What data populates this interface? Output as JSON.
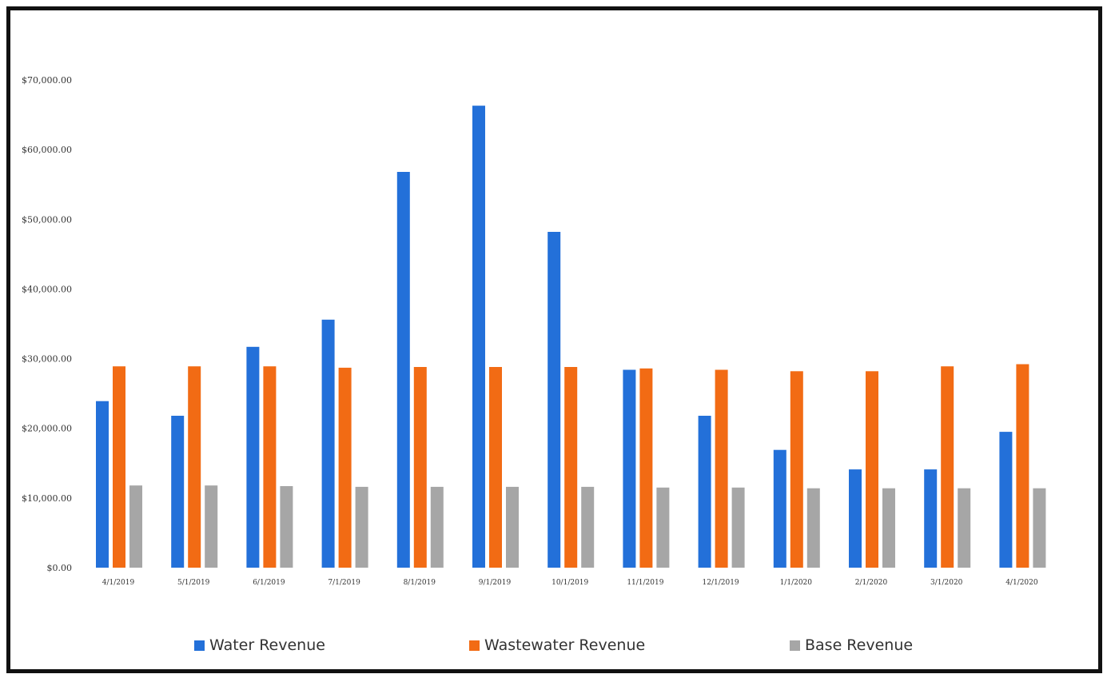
{
  "chart_data": {
    "type": "bar",
    "title": "",
    "xlabel": "",
    "ylabel": "",
    "categories": [
      "4/1/2019",
      "5/1/2019",
      "6/1/2019",
      "7/1/2019",
      "8/1/2019",
      "9/1/2019",
      "10/1/2019",
      "11/1/2019",
      "12/1/2019",
      "1/1/2020",
      "2/1/2020",
      "3/1/2020",
      "4/1/2020"
    ],
    "series": [
      {
        "name": "Water Revenue",
        "color": "#2370d9",
        "values": [
          23900,
          21800,
          31700,
          35600,
          56800,
          66300,
          48200,
          28400,
          21800,
          16900,
          14100,
          14100,
          19500
        ]
      },
      {
        "name": "Wastewater Revenue",
        "color": "#f26b14",
        "values": [
          28900,
          28900,
          28900,
          28700,
          28800,
          28800,
          28800,
          28600,
          28400,
          28200,
          28200,
          28900,
          29200
        ]
      },
      {
        "name": "Base Revenue",
        "color": "#a6a6a6",
        "values": [
          11800,
          11800,
          11700,
          11600,
          11600,
          11600,
          11600,
          11500,
          11500,
          11400,
          11400,
          11400,
          11400
        ]
      }
    ],
    "ylim": [
      0,
      70000
    ],
    "yticks": [
      "$0.00",
      "$10,000.00",
      "$20,000.00",
      "$30,000.00",
      "$40,000.00",
      "$50,000.00",
      "$60,000.00",
      "$70,000.00"
    ],
    "grid": false,
    "legend_position": "bottom"
  }
}
